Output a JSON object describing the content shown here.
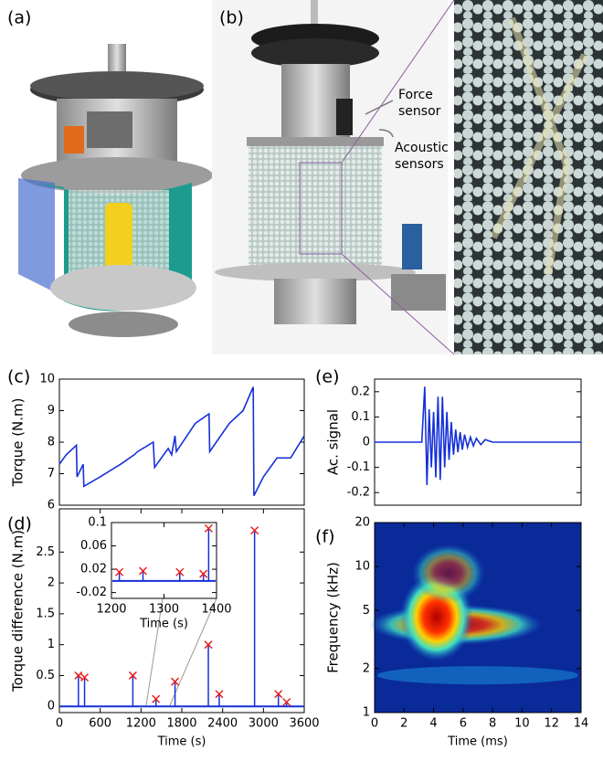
{
  "figure": {
    "panels": [
      "(a)",
      "(b)"
    ],
    "annotations": [
      {
        "lines": [
          "Force",
          "sensor"
        ]
      },
      {
        "lines": [
          "Acoustic",
          "sensors"
        ]
      }
    ]
  },
  "chart_data": [
    {
      "type": "line",
      "panel": "(c)",
      "ylabel": "Torque (N.m)",
      "xlim": [
        0,
        3600
      ],
      "ylim": [
        6,
        10
      ],
      "yticks": [
        6,
        7,
        8,
        9,
        10
      ],
      "series": [
        {
          "color": "#1530d8",
          "x": [
            0,
            100,
            250,
            260,
            350,
            360,
            600,
            900,
            1100,
            1150,
            1380,
            1400,
            1600,
            1650,
            1700,
            1720,
            2000,
            2200,
            2210,
            2500,
            2700,
            2850,
            2860,
            3000,
            3200,
            3400,
            3600
          ],
          "values": [
            7.3,
            7.6,
            7.9,
            6.9,
            7.3,
            6.6,
            6.9,
            7.3,
            7.6,
            7.7,
            8.0,
            7.2,
            7.8,
            7.6,
            8.2,
            7.7,
            8.6,
            8.9,
            7.7,
            8.6,
            9.0,
            9.75,
            6.3,
            6.9,
            7.5,
            7.5,
            8.2
          ]
        }
      ]
    },
    {
      "type": "stem",
      "panel": "(d)",
      "ylabel": "Torque difference (N.m)",
      "xlabel": "Time (s)",
      "xlim": [
        0,
        3600
      ],
      "xticks": [
        0,
        600,
        1200,
        1800,
        2400,
        3000,
        3600
      ],
      "ylim": [
        -0.1,
        3.2
      ],
      "yticks": [
        0,
        0.5,
        1,
        1.5,
        2,
        2.5
      ],
      "line_color": "#1530d8",
      "marker_color": "#e8201c",
      "series": [
        {
          "x": [
            280,
            370,
            1080,
            1420,
            1700,
            2190,
            2350,
            2870,
            3220,
            3340
          ],
          "values": [
            0.5,
            0.47,
            0.5,
            0.12,
            0.4,
            1.0,
            0.2,
            2.85,
            0.2,
            0.07
          ]
        }
      ]
    },
    {
      "type": "stem",
      "xlabel": "Time (s)",
      "xlim": [
        1200,
        1400
      ],
      "xticks": [
        1200,
        1300,
        1400
      ],
      "ylim": [
        -0.03,
        0.1
      ],
      "yticks": [
        -0.02,
        0.02,
        0.06,
        0.1
      ],
      "line_color": "#1530d8",
      "marker_color": "#e8201c",
      "series": [
        {
          "x": [
            1215,
            1260,
            1330,
            1375,
            1385
          ],
          "values": [
            0.015,
            0.017,
            0.015,
            0.012,
            0.09
          ]
        }
      ]
    },
    {
      "type": "line",
      "panel": "(e)",
      "ylabel": "Ac. signal",
      "xlim": [
        0,
        14
      ],
      "ylim": [
        -0.25,
        0.25
      ],
      "yticks": [
        -0.2,
        -0.1,
        0,
        0.1,
        0.2
      ],
      "series": [
        {
          "color": "#1530d8",
          "x": [
            0,
            3.2,
            3.4,
            3.55,
            3.7,
            3.85,
            4.0,
            4.15,
            4.3,
            4.45,
            4.6,
            4.75,
            4.9,
            5.05,
            5.2,
            5.35,
            5.5,
            5.65,
            5.8,
            5.95,
            6.1,
            6.3,
            6.5,
            6.7,
            6.9,
            7.2,
            7.5,
            8,
            14
          ],
          "values": [
            0,
            0,
            0.22,
            -0.17,
            0.13,
            -0.1,
            0.12,
            -0.14,
            0.18,
            -0.15,
            0.18,
            -0.1,
            0.12,
            -0.07,
            0.08,
            -0.05,
            0.05,
            -0.04,
            0.04,
            -0.03,
            0.03,
            -0.02,
            0.02,
            -0.015,
            0.015,
            -0.01,
            0.01,
            0,
            0
          ]
        }
      ]
    },
    {
      "type": "spectrogram",
      "panel": "(f)",
      "ylabel": "Frequency (kHz)",
      "xlabel": "Time (ms)",
      "xlim": [
        0,
        14
      ],
      "xticks": [
        0,
        2,
        4,
        6,
        8,
        10,
        12,
        14
      ],
      "ylim": [
        1,
        20
      ],
      "yticks": [
        1,
        2,
        5,
        10,
        20
      ],
      "ylog": true
    }
  ]
}
